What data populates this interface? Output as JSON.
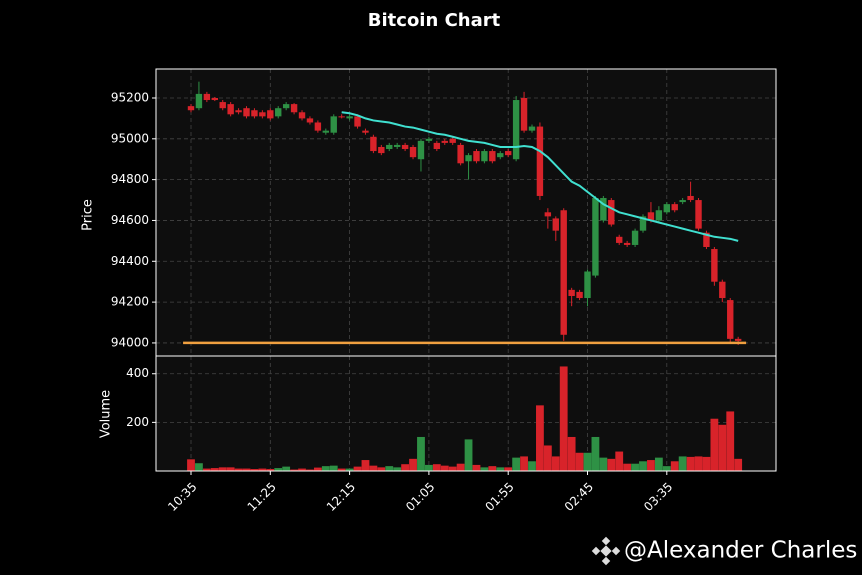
{
  "chart_data": {
    "type": "candlestick",
    "title": "Bitcoin Chart",
    "ylabel": "Price",
    "categories": [
      "10:35",
      null,
      null,
      null,
      null,
      null,
      null,
      null,
      null,
      null,
      "11:25",
      null,
      null,
      null,
      null,
      null,
      null,
      null,
      null,
      null,
      "12:15",
      null,
      null,
      null,
      null,
      null,
      null,
      null,
      null,
      null,
      "01:05",
      null,
      null,
      null,
      null,
      null,
      null,
      null,
      null,
      null,
      "01:55",
      null,
      null,
      null,
      null,
      null,
      null,
      null,
      null,
      null,
      "02:45",
      null,
      null,
      null,
      null,
      null,
      null,
      null,
      null,
      null,
      "03:35",
      null,
      null,
      null,
      null,
      null,
      null,
      null,
      null,
      null
    ],
    "open": [
      95160,
      95150,
      95220,
      95200,
      95180,
      95170,
      95140,
      95150,
      95140,
      95130,
      95140,
      95110,
      95150,
      95170,
      95130,
      95100,
      95080,
      95030,
      95030,
      95110,
      95100,
      95110,
      95040,
      95010,
      94960,
      94950,
      94960,
      94970,
      94960,
      94900,
      94990,
      94980,
      94990,
      95000,
      94970,
      94890,
      94940,
      94890,
      94940,
      94910,
      94940,
      94900,
      95200,
      95040,
      95060,
      94640,
      94610,
      94650,
      94260,
      94250,
      94220,
      94330,
      94600,
      94700,
      94520,
      94490,
      94480,
      94550,
      94640,
      94600,
      94640,
      94680,
      94690,
      94720,
      94700,
      94540,
      94460,
      94300,
      94210,
      94020
    ],
    "high": [
      95170,
      95280,
      95230,
      95205,
      95190,
      95180,
      95150,
      95160,
      95150,
      95140,
      95150,
      95160,
      95180,
      95175,
      95140,
      95110,
      95090,
      95050,
      95120,
      95120,
      95120,
      95120,
      95050,
      95020,
      94970,
      94980,
      94980,
      94980,
      94970,
      95000,
      95010,
      94990,
      95000,
      95010,
      94980,
      94930,
      94950,
      94950,
      94950,
      94940,
      94950,
      95210,
      95230,
      95070,
      95080,
      94660,
      94620,
      94660,
      94270,
      94260,
      94360,
      94720,
      94720,
      94710,
      94530,
      94500,
      94560,
      94630,
      94690,
      94670,
      94690,
      94690,
      94710,
      94790,
      94710,
      94550,
      94470,
      94310,
      94220,
      94030
    ],
    "low": [
      95130,
      95140,
      95180,
      95185,
      95140,
      95110,
      95120,
      95100,
      95100,
      95100,
      95090,
      95100,
      95140,
      95120,
      95090,
      95070,
      95030,
      95020,
      95020,
      95100,
      95090,
      95050,
      95020,
      94930,
      94920,
      94940,
      94950,
      94940,
      94900,
      94840,
      94980,
      94940,
      94970,
      94970,
      94870,
      94800,
      94880,
      94880,
      94880,
      94900,
      94910,
      94890,
      95030,
      95030,
      94700,
      94560,
      94500,
      94010,
      94180,
      94210,
      94180,
      94320,
      94590,
      94570,
      94480,
      94470,
      94470,
      94540,
      94590,
      94590,
      94630,
      94640,
      94680,
      94690,
      94550,
      94460,
      94280,
      94200,
      94000,
      93990
    ],
    "close": [
      95140,
      95220,
      95190,
      95190,
      95150,
      95120,
      95130,
      95110,
      95110,
      95110,
      95100,
      95150,
      95170,
      95130,
      95100,
      95080,
      95040,
      95040,
      95110,
      95105,
      95110,
      95060,
      95030,
      94940,
      94930,
      94970,
      94970,
      94950,
      94910,
      94990,
      95000,
      94950,
      94980,
      94980,
      94880,
      94920,
      94890,
      94940,
      94890,
      94930,
      94920,
      95190,
      95040,
      95060,
      94720,
      94620,
      94550,
      94040,
      94230,
      94220,
      94350,
      94710,
      94710,
      94580,
      94490,
      94480,
      94550,
      94620,
      94600,
      94650,
      94680,
      94650,
      94700,
      94700,
      94560,
      94470,
      94300,
      94220,
      94020,
      94010
    ],
    "up_color": "#2e9145",
    "down_color": "#d8232a",
    "ylim": [
      93936,
      95342
    ],
    "yticks": [
      94000,
      94200,
      94400,
      94600,
      94800,
      95000,
      95200
    ],
    "grid": true,
    "moving_average": {
      "color": "#40e0d0",
      "values": [
        null,
        null,
        null,
        null,
        null,
        null,
        null,
        null,
        null,
        null,
        null,
        null,
        null,
        null,
        null,
        null,
        null,
        null,
        null,
        95130,
        95125,
        95115,
        95100,
        95090,
        95085,
        95080,
        95070,
        95060,
        95055,
        95045,
        95035,
        95025,
        95020,
        95010,
        95000,
        94990,
        94985,
        94980,
        94970,
        94960,
        94960,
        94960,
        94965,
        94960,
        94940,
        94910,
        94870,
        94830,
        94790,
        94770,
        94740,
        94710,
        94680,
        94660,
        94640,
        94630,
        94620,
        94610,
        94600,
        94590,
        94580,
        94570,
        94560,
        94550,
        94540,
        94530,
        94520,
        94515,
        94510,
        94500
      ]
    },
    "hline": {
      "value": 94000,
      "color": "#f0a040"
    },
    "volume": {
      "ylabel": "Volume",
      "ylim": [
        0,
        473
      ],
      "yticks": [
        200,
        400
      ],
      "values": [
        48,
        32,
        10,
        12,
        15,
        15,
        10,
        10,
        8,
        10,
        8,
        12,
        18,
        6,
        10,
        6,
        14,
        20,
        22,
        10,
        10,
        18,
        45,
        22,
        15,
        20,
        15,
        28,
        50,
        140,
        25,
        28,
        22,
        18,
        30,
        130,
        25,
        15,
        20,
        15,
        15,
        55,
        60,
        40,
        270,
        105,
        60,
        430,
        140,
        75,
        75,
        140,
        55,
        50,
        80,
        30,
        30,
        40,
        45,
        55,
        20,
        40,
        60,
        58,
        60,
        58,
        215,
        190,
        245,
        50
      ]
    }
  },
  "watermark": "@Alexander Charles"
}
